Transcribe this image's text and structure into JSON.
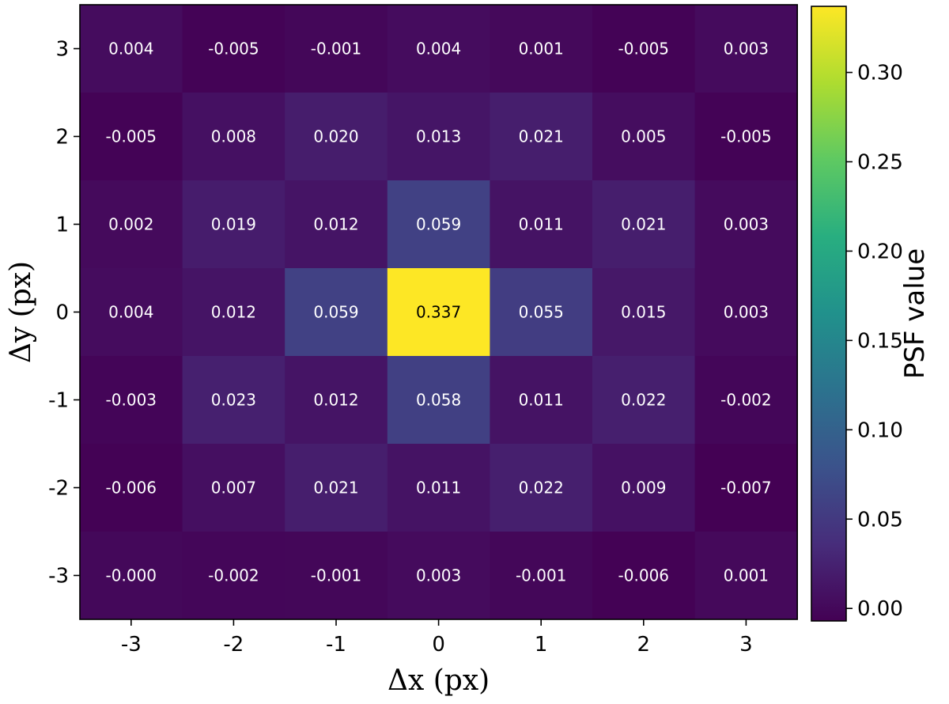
{
  "chart_data": {
    "type": "heatmap",
    "title": "",
    "xlabel": "Δx (px)",
    "ylabel": "Δy (px)",
    "x": [
      -3,
      -2,
      -1,
      0,
      1,
      2,
      3
    ],
    "y": [
      3,
      2,
      1,
      0,
      -1,
      -2,
      -3
    ],
    "x_tick_labels": [
      "-3",
      "-2",
      "-1",
      "0",
      "1",
      "2",
      "3"
    ],
    "y_tick_labels": [
      "3",
      "2",
      "1",
      "0",
      "-1",
      "-2",
      "-3"
    ],
    "values": [
      [
        0.004,
        -0.005,
        -0.001,
        0.004,
        0.001,
        -0.005,
        0.003
      ],
      [
        -0.005,
        0.008,
        0.02,
        0.013,
        0.021,
        0.005,
        -0.005
      ],
      [
        0.002,
        0.019,
        0.012,
        0.059,
        0.011,
        0.021,
        0.003
      ],
      [
        0.004,
        0.012,
        0.059,
        0.337,
        0.055,
        0.015,
        0.003
      ],
      [
        -0.003,
        0.023,
        0.012,
        0.058,
        0.011,
        0.022,
        -0.002
      ],
      [
        -0.006,
        0.007,
        0.021,
        0.011,
        0.022,
        0.009,
        -0.007
      ],
      [
        -0.0,
        -0.002,
        -0.001,
        0.003,
        -0.001,
        -0.006,
        0.001
      ]
    ],
    "value_labels": [
      [
        "0.004",
        "-0.005",
        "-0.001",
        "0.004",
        "0.001",
        "-0.005",
        "0.003"
      ],
      [
        "-0.005",
        "0.008",
        "0.020",
        "0.013",
        "0.021",
        "0.005",
        "-0.005"
      ],
      [
        "0.002",
        "0.019",
        "0.012",
        "0.059",
        "0.011",
        "0.021",
        "0.003"
      ],
      [
        "0.004",
        "0.012",
        "0.059",
        "0.337",
        "0.055",
        "0.015",
        "0.003"
      ],
      [
        "-0.003",
        "0.023",
        "0.012",
        "0.058",
        "0.011",
        "0.022",
        "-0.002"
      ],
      [
        "-0.006",
        "0.007",
        "0.021",
        "0.011",
        "0.022",
        "0.009",
        "-0.007"
      ],
      [
        "-0.000",
        "-0.002",
        "-0.001",
        "0.003",
        "-0.001",
        "-0.006",
        "0.001"
      ]
    ],
    "colormap": "viridis",
    "colorbar": {
      "label": "PSF value",
      "range": [
        -0.007,
        0.337
      ],
      "ticks": [
        0.0,
        0.05,
        0.1,
        0.15,
        0.2,
        0.25,
        0.3
      ],
      "tick_labels": [
        "0.00",
        "0.05",
        "0.10",
        "0.15",
        "0.20",
        "0.25",
        "0.30"
      ]
    },
    "grid": false
  }
}
